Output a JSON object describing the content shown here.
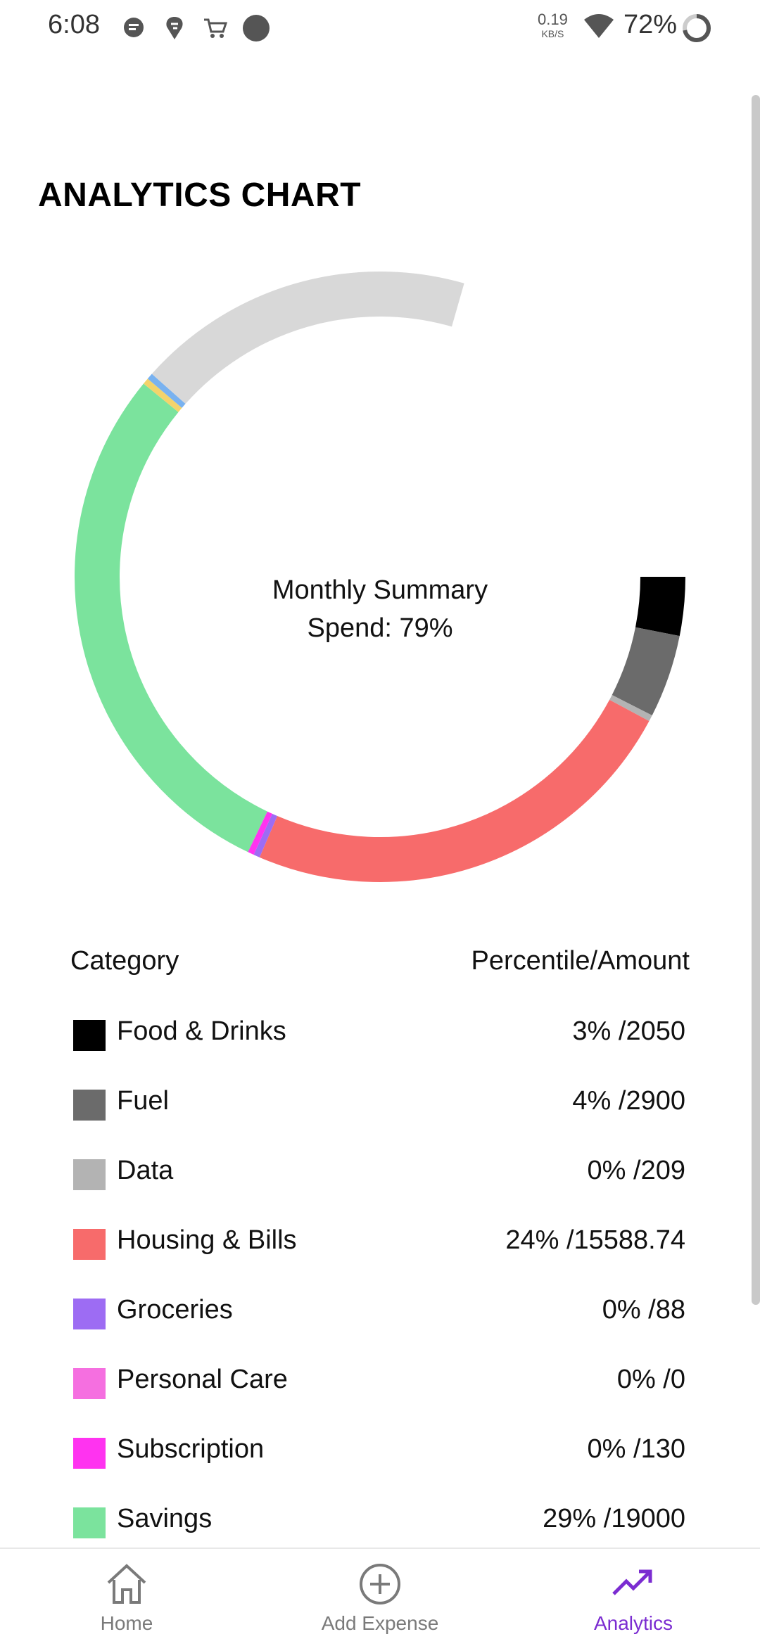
{
  "status_bar": {
    "time": "6:08",
    "net_speed": "0.19",
    "net_unit": "KB/S",
    "battery": "72%"
  },
  "title": "ANALYTICS CHART",
  "chart_center": {
    "line1": "Monthly Summary",
    "line2": "Spend: 79%"
  },
  "table": {
    "header_category": "Category",
    "header_amount": "Percentile/Amount"
  },
  "categories": [
    {
      "label": "Food & Drinks",
      "value": "3% /2050",
      "color": "#000000"
    },
    {
      "label": "Fuel",
      "value": "4% /2900",
      "color": "#6b6b6b"
    },
    {
      "label": "Data",
      "value": "0% /209",
      "color": "#b3b3b3"
    },
    {
      "label": "Housing & Bills",
      "value": "24% /15588.74",
      "color": "#f76b6b"
    },
    {
      "label": "Groceries",
      "value": "0% /88",
      "color": "#9d6cf3"
    },
    {
      "label": "Personal Care",
      "value": "0% /0",
      "color": "#f56fe0"
    },
    {
      "label": "Subscription",
      "value": "0% /130",
      "color": "#ff33f0"
    },
    {
      "label": "Savings",
      "value": "29% /19000",
      "color": "#7be39d"
    }
  ],
  "chart_data": {
    "type": "pie",
    "categories": [
      "Food & Drinks",
      "Fuel",
      "Data",
      "Housing & Bills",
      "Groceries",
      "Personal Care",
      "Subscription",
      "Savings"
    ],
    "values": [
      2050,
      2900,
      209,
      15588.74,
      88,
      0,
      130,
      19000
    ],
    "colors": [
      "#000000",
      "#6b6b6b",
      "#b3b3b3",
      "#f76b6b",
      "#9d6cf3",
      "#f56fe0",
      "#ff33f0",
      "#7be39d"
    ],
    "remaining_color": "#d8d8d8",
    "accent_colors": [
      "#f3d36b",
      "#79b2f0"
    ]
  },
  "bottom_nav": {
    "items": [
      {
        "label": "Home",
        "icon": "home-icon",
        "active": false
      },
      {
        "label": "Add Expense",
        "icon": "add-circle-icon",
        "active": false
      },
      {
        "label": "Analytics",
        "icon": "trending-up-icon",
        "active": true
      }
    ],
    "active_color": "#7b2cd1"
  }
}
